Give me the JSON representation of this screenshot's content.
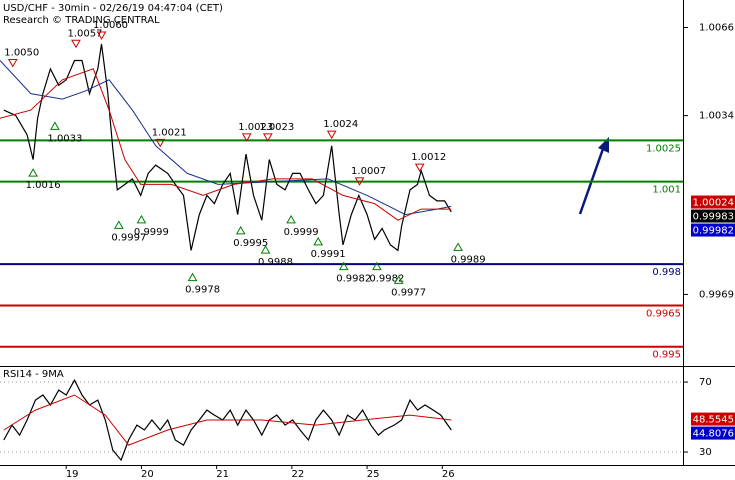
{
  "chart_data": [
    {
      "type": "line",
      "title": "USD/CHF - 30min - 02/26/19 04:47:04 (CET)",
      "subtitle": "Research © TRADING CENTRAL",
      "xlim": [
        18.12,
        27.2
      ],
      "ylim": [
        0.9943,
        1.0076
      ],
      "yticks": [
        0.9969,
        1.0034,
        1.0066
      ],
      "grid": false,
      "series": [
        {
          "color": "#000000",
          "x": [
            18.17,
            18.33,
            18.48,
            18.56,
            18.62,
            18.69,
            18.79,
            18.9,
            19.0,
            19.11,
            19.21,
            19.31,
            19.42,
            19.47,
            19.55,
            19.62,
            19.68,
            19.78,
            19.88,
            19.99,
            20.09,
            20.19,
            20.35,
            20.45,
            20.56,
            20.66,
            20.77,
            20.87,
            20.97,
            21.08,
            21.18,
            21.28,
            21.39,
            21.49,
            21.6,
            21.7,
            21.8,
            21.91,
            22.01,
            22.11,
            22.22,
            22.32,
            22.42,
            22.53,
            22.63,
            22.68,
            22.79,
            22.89,
            23.0,
            23.1,
            23.2,
            23.31,
            23.41,
            23.46,
            23.57,
            23.67,
            23.72,
            23.83,
            23.93,
            24.03,
            24.12
          ],
          "values": [
            1.0036,
            1.0034,
            1.0027,
            1.0018,
            1.0033,
            1.0042,
            1.0051,
            1.0045,
            1.0047,
            1.0054,
            1.0054,
            1.0042,
            1.0051,
            1.006,
            1.0043,
            1.0022,
            1.0007,
            1.0009,
            1.0011,
            1.0005,
            1.0013,
            1.0016,
            1.0013,
            1.0009,
            1.0005,
            0.9985,
            0.9998,
            1.0005,
            1.0002,
            1.0009,
            1.0013,
            0.9998,
            1.002,
            1.0005,
            0.9996,
            1.0018,
            1.0009,
            1.0007,
            1.0013,
            1.0013,
            1.0007,
            1.0002,
            1.0005,
            1.0023,
            0.9998,
            0.9987,
            0.9998,
            1.0005,
            0.9998,
            0.9989,
            0.9993,
            0.9987,
            0.9985,
            0.9994,
            1.0007,
            1.0009,
            1.0014,
            1.0005,
            1.0003,
            1.0003,
            0.9999
          ]
        },
        {
          "color": "#1a2f8f",
          "x": [
            18.12,
            18.53,
            18.95,
            19.26,
            19.57,
            19.88,
            20.19,
            20.61,
            21.02,
            21.75,
            22.48,
            23.0,
            23.51,
            23.93,
            24.12
          ],
          "values": [
            1.0054,
            1.0042,
            1.004,
            1.0043,
            1.0047,
            1.0036,
            1.0023,
            1.0013,
            1.0009,
            1.001,
            1.0011,
            1.0005,
            0.9998,
            1.0,
            1.0001
          ]
        },
        {
          "color": "#cc0000",
          "x": [
            18.12,
            18.53,
            18.95,
            19.36,
            19.57,
            19.78,
            19.99,
            20.4,
            20.82,
            21.23,
            21.75,
            22.27,
            22.68,
            23.1,
            23.41,
            23.72,
            24.12
          ],
          "values": [
            1.0033,
            1.0036,
            1.0047,
            1.0051,
            1.0036,
            1.0018,
            1.0009,
            1.0009,
            1.0005,
            1.0009,
            1.0011,
            1.0011,
            1.0005,
            1.0002,
            0.9996,
            1.0,
            1.0
          ]
        }
      ],
      "levels": [
        {
          "value": 1.0025,
          "color": "#008000"
        },
        {
          "value": 1.001,
          "color": "#008000"
        },
        {
          "value": 0.998,
          "color": "#000080"
        },
        {
          "value": 0.9965,
          "color": "#cc0000"
        },
        {
          "value": 0.995,
          "color": "#cc0000"
        }
      ],
      "price_labels": [
        {
          "value": 1.00024,
          "color": "#cc0000"
        },
        {
          "value": 0.99983,
          "color": "#000000"
        },
        {
          "value": 0.99982,
          "color": "#0000cc"
        }
      ],
      "annotations": [
        {
          "x": 18.29,
          "value": 1.005,
          "label": "1.0050",
          "direction": "down"
        },
        {
          "x": 18.85,
          "value": 1.0033,
          "label": "1.0033",
          "direction": "up"
        },
        {
          "x": 19.13,
          "value": 1.0057,
          "label": "1.0057",
          "direction": "down"
        },
        {
          "x": 19.47,
          "value": 1.006,
          "label": "1.0060",
          "direction": "down"
        },
        {
          "x": 18.56,
          "value": 1.0016,
          "label": "1.0016",
          "direction": "up"
        },
        {
          "x": 19.7,
          "value": 0.9997,
          "label": "0.9997",
          "direction": "up"
        },
        {
          "x": 20.0,
          "value": 0.9999,
          "label": "0.9999",
          "direction": "up"
        },
        {
          "x": 20.25,
          "value": 1.0021,
          "label": "1.0021",
          "direction": "down"
        },
        {
          "x": 20.68,
          "value": 0.9978,
          "label": "0.9978",
          "direction": "up"
        },
        {
          "x": 21.4,
          "value": 1.0023,
          "label": "1.0023",
          "direction": "down"
        },
        {
          "x": 21.68,
          "value": 1.0023,
          "label": "1.0023",
          "direction": "down"
        },
        {
          "x": 21.32,
          "value": 0.9995,
          "label": "0.9995",
          "direction": "up"
        },
        {
          "x": 21.65,
          "value": 0.9988,
          "label": "0.9988",
          "direction": "up"
        },
        {
          "x": 21.99,
          "value": 0.9999,
          "label": "0.9999",
          "direction": "up"
        },
        {
          "x": 22.53,
          "value": 1.0024,
          "label": "1.0024",
          "direction": "down"
        },
        {
          "x": 22.35,
          "value": 0.9991,
          "label": "0.9991",
          "direction": "up"
        },
        {
          "x": 22.9,
          "value": 1.0007,
          "label": "1.0007",
          "direction": "down"
        },
        {
          "x": 22.69,
          "value": 0.9982,
          "label": "0.9982",
          "direction": "up"
        },
        {
          "x": 23.13,
          "value": 0.9982,
          "label": "0.9982",
          "direction": "up"
        },
        {
          "x": 23.7,
          "value": 1.0012,
          "label": "1.0012",
          "direction": "down"
        },
        {
          "x": 23.42,
          "value": 0.9977,
          "label": "0.9977",
          "direction": "up"
        },
        {
          "x": 24.21,
          "value": 0.9989,
          "label": "0.9989",
          "direction": "up"
        }
      ]
    },
    {
      "type": "line",
      "title": "RSI14 - 9MA",
      "xlim": [
        18.12,
        27.2
      ],
      "ylim": [
        22.6,
        78.6
      ],
      "yticks": [
        30,
        70
      ],
      "grid": true,
      "xticks": [
        19,
        20,
        21,
        22,
        {
          "value": 23,
          "label": "25"
        },
        {
          "value": 24,
          "label": "26"
        }
      ],
      "series": [
        {
          "color": "#000000",
          "x": [
            18.17,
            18.28,
            18.38,
            18.48,
            18.59,
            18.69,
            18.79,
            18.9,
            19.0,
            19.11,
            19.21,
            19.31,
            19.42,
            19.52,
            19.62,
            19.73,
            19.83,
            19.94,
            20.04,
            20.14,
            20.25,
            20.35,
            20.45,
            20.56,
            20.66,
            20.77,
            20.87,
            20.97,
            21.08,
            21.18,
            21.28,
            21.39,
            21.49,
            21.6,
            21.7,
            21.8,
            21.91,
            22.01,
            22.11,
            22.22,
            22.32,
            22.42,
            22.53,
            22.63,
            22.74,
            22.84,
            22.94,
            23.05,
            23.15,
            23.23,
            23.36,
            23.46,
            23.57,
            23.67,
            23.77,
            23.88,
            23.98,
            24.12
          ],
          "values": [
            36.9,
            45.4,
            39.7,
            48.3,
            59.7,
            62.6,
            56.9,
            65.4,
            62.6,
            71.1,
            62.6,
            56.9,
            59.7,
            48.3,
            31.1,
            25.4,
            36.9,
            45.4,
            42.6,
            48.3,
            42.6,
            48.3,
            36.9,
            34.0,
            42.6,
            48.3,
            54.0,
            51.1,
            48.3,
            54.0,
            45.4,
            54.0,
            48.3,
            39.7,
            48.3,
            51.1,
            45.4,
            48.3,
            42.6,
            36.9,
            48.3,
            54.0,
            48.3,
            39.7,
            51.1,
            48.3,
            54.0,
            45.4,
            39.7,
            42.6,
            45.4,
            48.3,
            59.7,
            54.0,
            56.9,
            54.0,
            51.1,
            42.6
          ]
        },
        {
          "color": "#cc0000",
          "x": [
            18.17,
            18.59,
            19.11,
            19.52,
            19.83,
            20.35,
            20.87,
            21.6,
            22.32,
            22.94,
            23.57,
            24.12
          ],
          "values": [
            42.6,
            54.0,
            62.6,
            51.1,
            34.0,
            42.6,
            48.3,
            48.3,
            45.4,
            48.3,
            51.1,
            48.3
          ]
        }
      ],
      "price_labels": [
        {
          "value": 48.5545,
          "color": "#cc0000"
        },
        {
          "value": 44.8076,
          "color": "#0000cc"
        }
      ]
    }
  ]
}
